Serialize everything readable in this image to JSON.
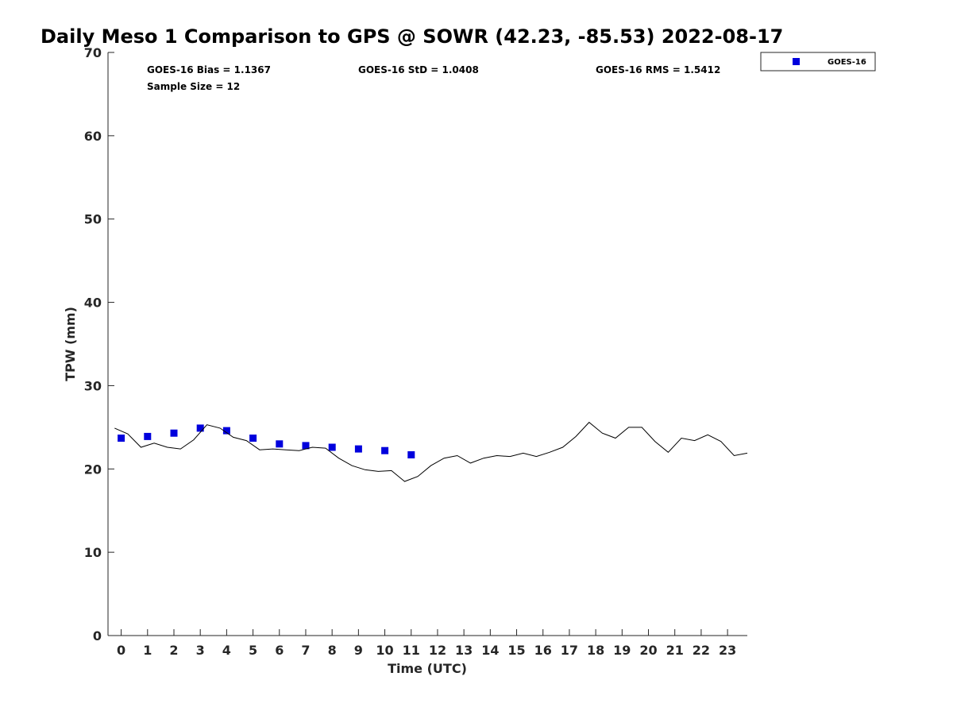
{
  "chart_data": {
    "type": "scatter",
    "title": "Daily Meso 1 Comparison to GPS @ SOWR (42.23, -85.53) 2022-08-17",
    "xlabel": "Time (UTC)",
    "ylabel": "TPW (mm)",
    "xlim": [
      -0.5,
      23.75
    ],
    "ylim": [
      0,
      70
    ],
    "xticks": [
      "0",
      "1",
      "2",
      "3",
      "4",
      "5",
      "6",
      "7",
      "8",
      "9",
      "10",
      "11",
      "12",
      "13",
      "14",
      "15",
      "16",
      "17",
      "18",
      "19",
      "20",
      "21",
      "22",
      "23"
    ],
    "yticks": [
      "0",
      "10",
      "20",
      "30",
      "40",
      "50",
      "60",
      "70"
    ],
    "grid": false,
    "legend_position": "top-right",
    "stats": [
      "GOES-16 Bias = 1.1367",
      "GOES-16 StD = 1.0408",
      "GOES-16 RMS = 1.5412",
      "Sample Size = 12"
    ],
    "series": [
      {
        "name": "GOES-16",
        "kind": "scatter",
        "marker": "square",
        "color": "#0000dd",
        "x": [
          0,
          1,
          2,
          3,
          4,
          5,
          6,
          7,
          8,
          9,
          10,
          11
        ],
        "y": [
          23.7,
          23.9,
          24.3,
          24.9,
          24.6,
          23.7,
          23.0,
          22.8,
          22.6,
          22.4,
          22.2,
          21.7
        ]
      },
      {
        "kind": "line",
        "color": "#000000",
        "x": [
          -0.25,
          0.25,
          0.75,
          1.25,
          1.75,
          2.25,
          2.75,
          3.25,
          3.75,
          4.25,
          4.75,
          5.25,
          5.75,
          6.25,
          6.75,
          7.25,
          7.75,
          8.25,
          8.75,
          9.25,
          9.75,
          10.25,
          10.75,
          11.25,
          11.75,
          12.25,
          12.75,
          13.25,
          13.75,
          14.25,
          14.75,
          15.25,
          15.75,
          16.25,
          16.75,
          17.25,
          17.75,
          18.25,
          18.75,
          19.25,
          19.75,
          20.25,
          20.75,
          21.25,
          21.75,
          22.25,
          22.75,
          23.25,
          23.75
        ],
        "y": [
          24.9,
          24.2,
          22.6,
          23.1,
          22.6,
          22.4,
          23.5,
          25.3,
          24.9,
          23.8,
          23.4,
          22.3,
          22.4,
          22.3,
          22.2,
          22.6,
          22.5,
          21.3,
          20.4,
          19.9,
          19.7,
          19.8,
          18.5,
          19.1,
          20.4,
          21.3,
          21.6,
          20.7,
          21.3,
          21.6,
          21.5,
          21.9,
          21.5,
          22.0,
          22.6,
          23.9,
          25.6,
          24.3,
          23.7,
          25.0,
          25.0,
          23.3,
          22.0,
          23.7,
          23.4,
          24.1,
          23.3,
          21.6,
          21.9
        ]
      }
    ]
  }
}
